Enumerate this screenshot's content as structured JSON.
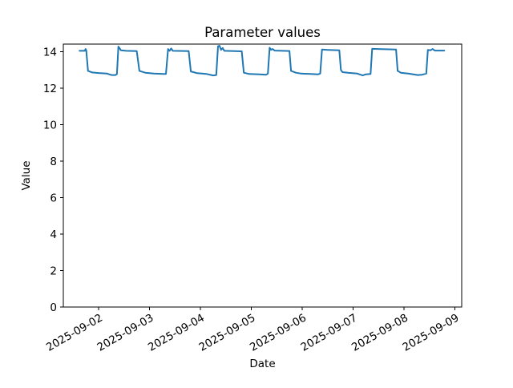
{
  "title": "Parameter values",
  "xlabel": "Date",
  "ylabel": "Value",
  "chart_data": {
    "type": "line",
    "title": "Parameter values",
    "xlabel": "Date",
    "ylabel": "Value",
    "line_color": "#1f77b4",
    "background_color": "#ffffff",
    "spine_color": "#000000",
    "grid": false,
    "legend": "none",
    "ylim": [
      0,
      14.42
    ],
    "y_ticks": [
      0,
      2,
      4,
      6,
      8,
      10,
      12,
      14
    ],
    "x_ticks": [
      "2025-09-02",
      "2025-09-03",
      "2025-09-04",
      "2025-09-05",
      "2025-09-06",
      "2025-09-07",
      "2025-09-08",
      "2025-09-09"
    ],
    "x_tick_rotation_deg": 30,
    "points": [
      [
        "2025-09-01T15:00",
        14.05
      ],
      [
        "2025-09-01T17:30",
        14.05
      ],
      [
        "2025-09-01T17:50",
        14.15
      ],
      [
        "2025-09-01T18:10",
        14.08
      ],
      [
        "2025-09-01T19:00",
        12.95
      ],
      [
        "2025-09-01T21:00",
        12.86
      ],
      [
        "2025-09-02T00:00",
        12.83
      ],
      [
        "2025-09-02T04:00",
        12.8
      ],
      [
        "2025-09-02T06:00",
        12.72
      ],
      [
        "2025-09-02T08:00",
        12.72
      ],
      [
        "2025-09-02T08:40",
        12.78
      ],
      [
        "2025-09-02T09:20",
        14.28
      ],
      [
        "2025-09-02T10:30",
        14.08
      ],
      [
        "2025-09-02T13:00",
        14.05
      ],
      [
        "2025-09-02T18:00",
        14.03
      ],
      [
        "2025-09-02T19:15",
        12.95
      ],
      [
        "2025-09-02T22:00",
        12.85
      ],
      [
        "2025-09-03T02:00",
        12.8
      ],
      [
        "2025-09-03T06:30",
        12.78
      ],
      [
        "2025-09-03T07:45",
        12.78
      ],
      [
        "2025-09-03T08:45",
        14.15
      ],
      [
        "2025-09-03T09:30",
        14.05
      ],
      [
        "2025-09-03T10:15",
        14.18
      ],
      [
        "2025-09-03T11:00",
        14.05
      ],
      [
        "2025-09-03T18:30",
        14.03
      ],
      [
        "2025-09-03T19:30",
        12.92
      ],
      [
        "2025-09-03T22:30",
        12.82
      ],
      [
        "2025-09-04T03:00",
        12.78
      ],
      [
        "2025-09-04T06:00",
        12.7
      ],
      [
        "2025-09-04T07:30",
        12.72
      ],
      [
        "2025-09-04T08:20",
        14.3
      ],
      [
        "2025-09-04T09:00",
        14.33
      ],
      [
        "2025-09-04T09:45",
        14.1
      ],
      [
        "2025-09-04T10:30",
        14.2
      ],
      [
        "2025-09-04T11:15",
        14.05
      ],
      [
        "2025-09-04T19:30",
        14.02
      ],
      [
        "2025-09-04T20:30",
        12.85
      ],
      [
        "2025-09-04T23:00",
        12.78
      ],
      [
        "2025-09-05T04:00",
        12.76
      ],
      [
        "2025-09-05T07:00",
        12.74
      ],
      [
        "2025-09-05T07:50",
        12.8
      ],
      [
        "2025-09-05T08:40",
        14.22
      ],
      [
        "2025-09-05T09:20",
        14.1
      ],
      [
        "2025-09-05T10:00",
        14.15
      ],
      [
        "2025-09-05T11:00",
        14.06
      ],
      [
        "2025-09-05T18:00",
        14.04
      ],
      [
        "2025-09-05T18:45",
        12.95
      ],
      [
        "2025-09-05T21:00",
        12.85
      ],
      [
        "2025-09-05T23:30",
        12.8
      ],
      [
        "2025-09-06T04:00",
        12.78
      ],
      [
        "2025-09-06T07:30",
        12.76
      ],
      [
        "2025-09-06T08:30",
        12.8
      ],
      [
        "2025-09-06T09:20",
        14.12
      ],
      [
        "2025-09-06T12:00",
        14.1
      ],
      [
        "2025-09-06T17:30",
        14.08
      ],
      [
        "2025-09-06T18:15",
        13.0
      ],
      [
        "2025-09-06T19:00",
        12.88
      ],
      [
        "2025-09-06T22:00",
        12.84
      ],
      [
        "2025-09-07T02:00",
        12.8
      ],
      [
        "2025-09-07T04:30",
        12.7
      ],
      [
        "2025-09-07T06:00",
        12.76
      ],
      [
        "2025-09-07T08:15",
        12.78
      ],
      [
        "2025-09-07T09:00",
        14.16
      ],
      [
        "2025-09-07T13:00",
        14.14
      ],
      [
        "2025-09-07T20:15",
        14.12
      ],
      [
        "2025-09-07T21:00",
        12.95
      ],
      [
        "2025-09-07T22:30",
        12.85
      ],
      [
        "2025-09-08T02:00",
        12.8
      ],
      [
        "2025-09-08T06:30",
        12.72
      ],
      [
        "2025-09-08T08:30",
        12.74
      ],
      [
        "2025-09-08T10:30",
        12.8
      ],
      [
        "2025-09-08T11:15",
        14.1
      ],
      [
        "2025-09-08T12:30",
        14.08
      ],
      [
        "2025-09-08T13:30",
        14.15
      ],
      [
        "2025-09-08T14:30",
        14.06
      ],
      [
        "2025-09-08T19:00",
        14.06
      ]
    ]
  }
}
